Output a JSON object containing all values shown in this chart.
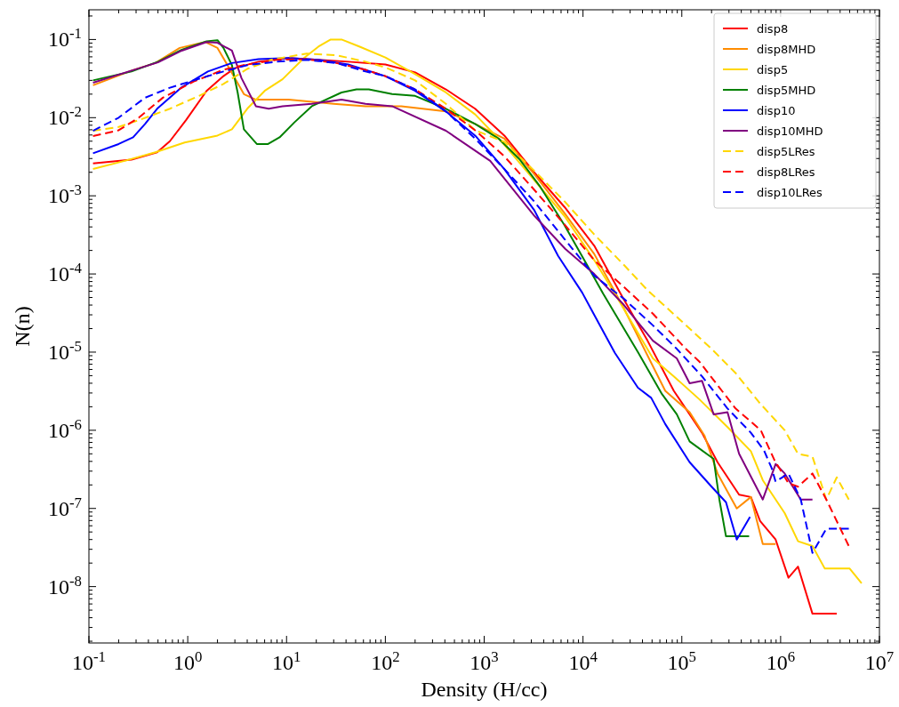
{
  "chart_data": {
    "type": "line",
    "xlabel": "Density (H/cc)",
    "ylabel": "N(n)",
    "log": "xy",
    "grid": false,
    "legend": "top right",
    "marker": "none",
    "xlim": [
      0.1,
      10000000
    ],
    "ylim": [
      1.9e-09,
      0.24
    ],
    "xticks": [
      {
        "value": 0.1,
        "label": "10$^{-1}$"
      },
      {
        "value": 1,
        "label": "10$^{0}$"
      },
      {
        "value": 10,
        "label": "10$^{1}$"
      },
      {
        "value": 100,
        "label": "10$^{2}$"
      },
      {
        "value": 1000,
        "label": "10$^{3}$"
      },
      {
        "value": 10000,
        "label": "10$^{4}$"
      },
      {
        "value": 100000,
        "label": "10$^{5}$"
      },
      {
        "value": 1000000,
        "label": "10$^{6}$"
      },
      {
        "value": 10000000,
        "label": "10$^{7}$"
      }
    ],
    "yticks": [
      {
        "value": 1e-08,
        "label": "10$^{-8}$"
      },
      {
        "value": 1e-07,
        "label": "10$^{-7}$"
      },
      {
        "value": 1e-06,
        "label": "10$^{-6}$"
      },
      {
        "value": 1e-05,
        "label": "10$^{-5}$"
      },
      {
        "value": 0.0001,
        "label": "10$^{-4}$"
      },
      {
        "value": 0.001,
        "label": "10$^{-3}$"
      },
      {
        "value": 0.01,
        "label": "10$^{-2}$"
      },
      {
        "value": 0.1,
        "label": "10$^{-1}$"
      }
    ],
    "series": [
      {
        "name": "disp8",
        "color": "#ff0000",
        "line_style": "solid",
        "x": [
          0.11,
          0.27,
          0.49,
          0.66,
          0.96,
          1.55,
          2.3,
          3.0,
          5.2,
          10.5,
          21,
          42,
          100,
          200,
          410,
          810,
          1600,
          3200,
          6500,
          13000,
          25000,
          45000,
          83000,
          160000,
          230000,
          380000,
          500000,
          620000,
          890000,
          1200000,
          1500000,
          2100000,
          3700000
        ],
        "values": [
          0.0026,
          0.0029,
          0.0036,
          0.005,
          0.0093,
          0.022,
          0.034,
          0.043,
          0.052,
          0.058,
          0.055,
          0.052,
          0.048,
          0.038,
          0.023,
          0.013,
          0.0059,
          0.002,
          0.00072,
          0.00023,
          5.1e-05,
          1.4e-05,
          3.2e-06,
          9.3e-07,
          3.9e-07,
          1.5e-07,
          1.4e-07,
          6.9e-08,
          4e-08,
          1.3e-08,
          1.8e-08,
          4.5e-09,
          4.5e-09
        ]
      },
      {
        "name": "disp8MHD",
        "color": "#ff8c00",
        "line_style": "solid",
        "x": [
          0.11,
          0.27,
          0.47,
          0.83,
          1.5,
          2.0,
          2.5,
          3.7,
          4.9,
          10.5,
          30,
          63,
          145,
          410,
          810,
          1600,
          3200,
          6500,
          13000,
          26000,
          68000,
          120000,
          170000,
          230000,
          360000,
          500000,
          660000,
          890000
        ],
        "values": [
          0.026,
          0.04,
          0.05,
          0.078,
          0.093,
          0.078,
          0.048,
          0.02,
          0.017,
          0.017,
          0.015,
          0.014,
          0.014,
          0.012,
          0.0083,
          0.0054,
          0.0019,
          0.0006,
          0.00018,
          3.6e-05,
          3.2e-06,
          1.7e-06,
          8.5e-07,
          2.8e-07,
          1e-07,
          1.4e-07,
          3.5e-08,
          3.5e-08
        ]
      },
      {
        "name": "disp5",
        "color": "#ffd700",
        "line_style": "solid",
        "x": [
          0.11,
          0.23,
          0.47,
          0.93,
          2.0,
          2.8,
          4.0,
          6.0,
          9.1,
          15,
          21,
          28,
          36,
          55,
          100,
          200,
          410,
          810,
          1600,
          3200,
          6500,
          13000,
          21000,
          51000,
          83000,
          150000,
          290000,
          500000,
          660000,
          1100000,
          1500000,
          2100000,
          2800000,
          5000000,
          6600000
        ],
        "values": [
          0.0022,
          0.0028,
          0.0036,
          0.0048,
          0.0059,
          0.0071,
          0.013,
          0.022,
          0.031,
          0.058,
          0.081,
          0.1,
          0.1,
          0.081,
          0.059,
          0.036,
          0.021,
          0.011,
          0.0045,
          0.0016,
          0.00055,
          0.00015,
          5.6e-05,
          8.3e-06,
          4.9e-06,
          2.5e-06,
          1.1e-06,
          5.4e-07,
          2.3e-07,
          8.7e-08,
          3.8e-08,
          3.3e-08,
          1.7e-08,
          1.7e-08,
          1.1e-08
        ]
      },
      {
        "name": "disp5MHD",
        "color": "#008000",
        "line_style": "solid",
        "x": [
          0.11,
          0.27,
          0.5,
          0.87,
          1.55,
          2.0,
          2.3,
          2.8,
          3.2,
          3.7,
          5.0,
          6.5,
          8.5,
          12,
          18,
          36,
          51,
          68,
          117,
          200,
          410,
          810,
          1400,
          2300,
          3700,
          6500,
          11000,
          16000,
          36000,
          63000,
          89000,
          120000,
          210000,
          240000,
          280000,
          480000
        ],
        "values": [
          0.03,
          0.039,
          0.052,
          0.074,
          0.095,
          0.098,
          0.078,
          0.047,
          0.021,
          0.0071,
          0.0046,
          0.0046,
          0.0056,
          0.0087,
          0.014,
          0.021,
          0.023,
          0.023,
          0.02,
          0.019,
          0.013,
          0.0083,
          0.0054,
          0.0029,
          0.0013,
          0.00042,
          0.00013,
          5.6e-05,
          1e-05,
          2.9e-06,
          1.6e-06,
          7.2e-07,
          4.3e-07,
          1.3e-07,
          4.4e-08,
          4.4e-08
        ]
      },
      {
        "name": "disp10",
        "color": "#0000ff",
        "line_style": "solid",
        "x": [
          0.11,
          0.2,
          0.28,
          0.37,
          0.49,
          0.85,
          1.6,
          2.8,
          5.2,
          10.5,
          21,
          42,
          100,
          200,
          410,
          810,
          1600,
          3200,
          5600,
          9800,
          12000,
          21000,
          36000,
          49000,
          68000,
          120000,
          200000,
          280000,
          360000,
          490000
        ],
        "values": [
          0.0035,
          0.0046,
          0.0056,
          0.0083,
          0.013,
          0.024,
          0.039,
          0.05,
          0.056,
          0.058,
          0.055,
          0.048,
          0.034,
          0.022,
          0.012,
          0.0059,
          0.0022,
          0.00066,
          0.00017,
          5.8e-05,
          3.6e-05,
          9.8e-06,
          3.5e-06,
          2.6e-06,
          1.2e-06,
          3.9e-07,
          1.9e-07,
          1.2e-07,
          4e-08,
          7.8e-08
        ]
      },
      {
        "name": "disp10MHD",
        "color": "#800080",
        "line_style": "solid",
        "x": [
          0.11,
          0.27,
          0.5,
          0.87,
          1.55,
          2.0,
          2.8,
          3.5,
          4.9,
          6.6,
          9.1,
          18,
          36,
          63,
          117,
          410,
          1150,
          3200,
          6600,
          13000,
          26000,
          51000,
          89000,
          120000,
          160000,
          210000,
          290000,
          380000,
          660000,
          890000,
          1100000,
          1600000,
          2100000
        ],
        "values": [
          0.028,
          0.04,
          0.051,
          0.072,
          0.093,
          0.091,
          0.072,
          0.032,
          0.014,
          0.013,
          0.014,
          0.015,
          0.017,
          0.015,
          0.014,
          0.0068,
          0.0028,
          0.00056,
          0.00021,
          0.0001,
          4e-05,
          1.4e-05,
          8.3e-06,
          4e-06,
          4.3e-06,
          1.6e-06,
          1.7e-06,
          5e-07,
          1.3e-07,
          3.7e-07,
          2.8e-07,
          1.3e-07,
          1.3e-07
        ]
      },
      {
        "name": "disp5LRes",
        "color": "#ffd700",
        "line_style": "dashed",
        "x": [
          0.11,
          0.2,
          0.32,
          0.66,
          1.3,
          2.3,
          4.0,
          6.9,
          16,
          32,
          63,
          100,
          200,
          410,
          810,
          1600,
          3200,
          6500,
          13000,
          26000,
          45000,
          120000,
          200000,
          350000,
          620000,
          1100000,
          1500000,
          2100000,
          2900000,
          3700000,
          4900000
        ],
        "values": [
          0.0068,
          0.0076,
          0.0093,
          0.013,
          0.019,
          0.027,
          0.042,
          0.055,
          0.066,
          0.063,
          0.052,
          0.044,
          0.03,
          0.015,
          0.0069,
          0.0049,
          0.0021,
          0.00085,
          0.00032,
          0.00013,
          6.2e-05,
          2e-05,
          1.1e-05,
          5.4e-06,
          2.2e-06,
          1e-06,
          5e-07,
          4.6e-07,
          1.3e-07,
          2.5e-07,
          1.3e-07
        ]
      },
      {
        "name": "disp8LRes",
        "color": "#ff0000",
        "line_style": "dashed",
        "x": [
          0.11,
          0.2,
          0.32,
          0.56,
          1.15,
          2.3,
          4.0,
          7.9,
          16,
          32,
          63,
          100,
          200,
          410,
          810,
          1600,
          3200,
          6500,
          13000,
          26000,
          51000,
          110000,
          150000,
          350000,
          630000,
          870000,
          1200000,
          1500000,
          2100000,
          2900000,
          4900000
        ],
        "values": [
          0.0058,
          0.0069,
          0.01,
          0.018,
          0.029,
          0.041,
          0.048,
          0.055,
          0.056,
          0.05,
          0.041,
          0.034,
          0.023,
          0.013,
          0.0069,
          0.0032,
          0.0012,
          0.00043,
          0.00015,
          6.8e-05,
          3.1e-05,
          1.1e-05,
          7.6e-06,
          1.9e-06,
          1e-06,
          4.1e-07,
          2.1e-07,
          1.9e-07,
          2.8e-07,
          1.3e-07,
          3.3e-08
        ]
      },
      {
        "name": "disp10LRes",
        "color": "#0000ff",
        "line_style": "dashed",
        "x": [
          0.11,
          0.2,
          0.37,
          0.65,
          1.15,
          2.3,
          4.0,
          7.9,
          16,
          32,
          63,
          100,
          200,
          410,
          810,
          1600,
          3200,
          6500,
          13000,
          26000,
          51000,
          89000,
          160000,
          290000,
          500000,
          680000,
          810000,
          890000,
          1200000,
          1600000,
          2100000,
          2900000,
          4900000
        ],
        "values": [
          0.0068,
          0.01,
          0.018,
          0.024,
          0.03,
          0.039,
          0.047,
          0.052,
          0.055,
          0.05,
          0.039,
          0.034,
          0.023,
          0.012,
          0.0054,
          0.0022,
          0.00085,
          0.00028,
          9.5e-05,
          4.8e-05,
          2.2e-05,
          1.1e-05,
          4.9e-06,
          1.9e-06,
          9.3e-07,
          5.5e-07,
          3.3e-07,
          2.2e-07,
          2.8e-07,
          1.3e-07,
          2.7e-08,
          5.5e-08,
          5.5e-08
        ]
      }
    ]
  }
}
